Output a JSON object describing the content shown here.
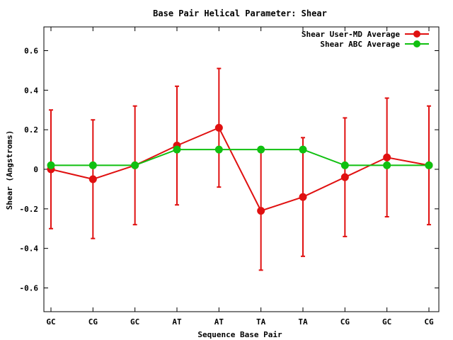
{
  "chart_data": {
    "type": "line",
    "title": "Base Pair Helical Parameter: Shear",
    "xlabel": "Sequence Base Pair",
    "ylabel": "Shear (Angstroms)",
    "categories": [
      "GC",
      "CG",
      "GC",
      "AT",
      "AT",
      "TA",
      "TA",
      "CG",
      "GC",
      "CG"
    ],
    "ylim": [
      -0.72,
      0.72
    ],
    "yticks": [
      -0.6,
      -0.4,
      -0.2,
      0,
      0.2,
      0.4,
      0.6
    ],
    "ytick_labels": [
      "-0.6",
      "-0.4",
      "-0.2",
      "0",
      "0.2",
      "0.4",
      "0.6"
    ],
    "grid": false,
    "legend_position": "top-right",
    "series": [
      {
        "name": "Shear User-MD Average",
        "color": "#e01010",
        "values": [
          0.0,
          -0.05,
          0.02,
          0.12,
          0.21,
          -0.21,
          -0.14,
          -0.04,
          0.06,
          0.02
        ],
        "error": [
          0.3,
          0.3,
          0.3,
          0.3,
          0.3,
          0.3,
          0.3,
          0.3,
          0.3,
          0.3
        ]
      },
      {
        "name": "Shear ABC Average",
        "color": "#10c010",
        "values": [
          0.02,
          0.02,
          0.02,
          0.1,
          0.1,
          0.1,
          0.1,
          0.02,
          0.02,
          0.02
        ]
      }
    ]
  }
}
